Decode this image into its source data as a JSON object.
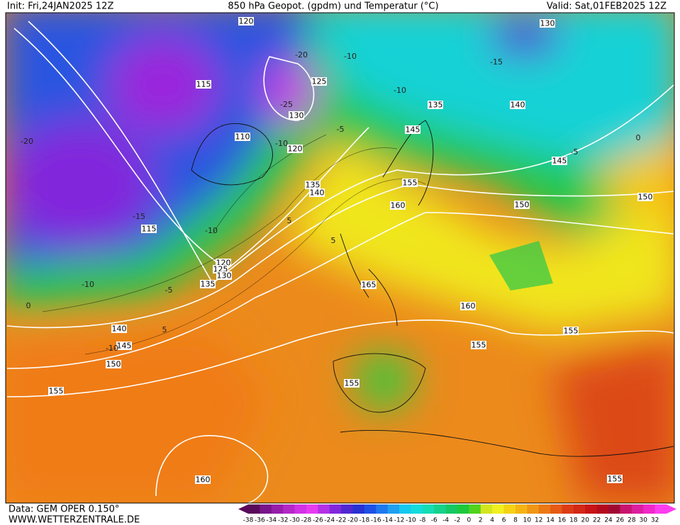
{
  "map": {
    "header": {
      "init": "Init: Fri,24JAN2025 12Z",
      "title": "850 hPa Geopot. (gpdm) und Temperatur (°C)",
      "valid": "Valid: Sat,01FEB2025 12Z"
    },
    "footer": {
      "data": "Data: GEM OPER 0.150°",
      "website": "WWW.WETTERZENTRALE.DE"
    },
    "colorbar": {
      "labels": [
        -38,
        -36,
        -34,
        -32,
        -30,
        -28,
        -26,
        -24,
        -22,
        -20,
        -18,
        -16,
        -14,
        -12,
        -10,
        -8,
        -6,
        -4,
        -2,
        0,
        2,
        4,
        6,
        8,
        10,
        12,
        14,
        16,
        18,
        20,
        22,
        24,
        26,
        28,
        30,
        32
      ],
      "colors": [
        "#5a0a5a",
        "#78148c",
        "#961eaa",
        "#b428c8",
        "#d232e6",
        "#e63cf0",
        "#b432e6",
        "#8228dc",
        "#5028d2",
        "#2832d2",
        "#1e50e6",
        "#1e78f0",
        "#1ea0f0",
        "#14c8f0",
        "#14dcdc",
        "#14dcb4",
        "#14d28c",
        "#14c864",
        "#1ec83c",
        "#50d21e",
        "#d2e61e",
        "#f0f01e",
        "#f5d214",
        "#f5b414",
        "#f09614",
        "#eb7814",
        "#e65a14",
        "#dc3c14",
        "#d22814",
        "#c81414",
        "#b40a1e",
        "#a00a32",
        "#c8146e",
        "#dc1ea0",
        "#f028c8",
        "#ff3cf0"
      ]
    },
    "geopotential_labels": [
      120,
      130,
      115,
      125,
      130,
      135,
      140,
      145,
      110,
      120,
      145,
      135,
      140,
      155,
      160,
      150,
      150,
      115,
      120,
      125,
      130,
      135,
      165,
      160,
      155,
      140,
      145,
      150,
      155,
      155,
      155,
      160,
      155
    ],
    "temperature_labels": [
      -10,
      -10,
      -15,
      -25,
      -20,
      -10,
      -5,
      -5,
      0,
      -15,
      -10,
      -10,
      -5,
      0,
      5,
      -10,
      5,
      5,
      -20
    ]
  }
}
